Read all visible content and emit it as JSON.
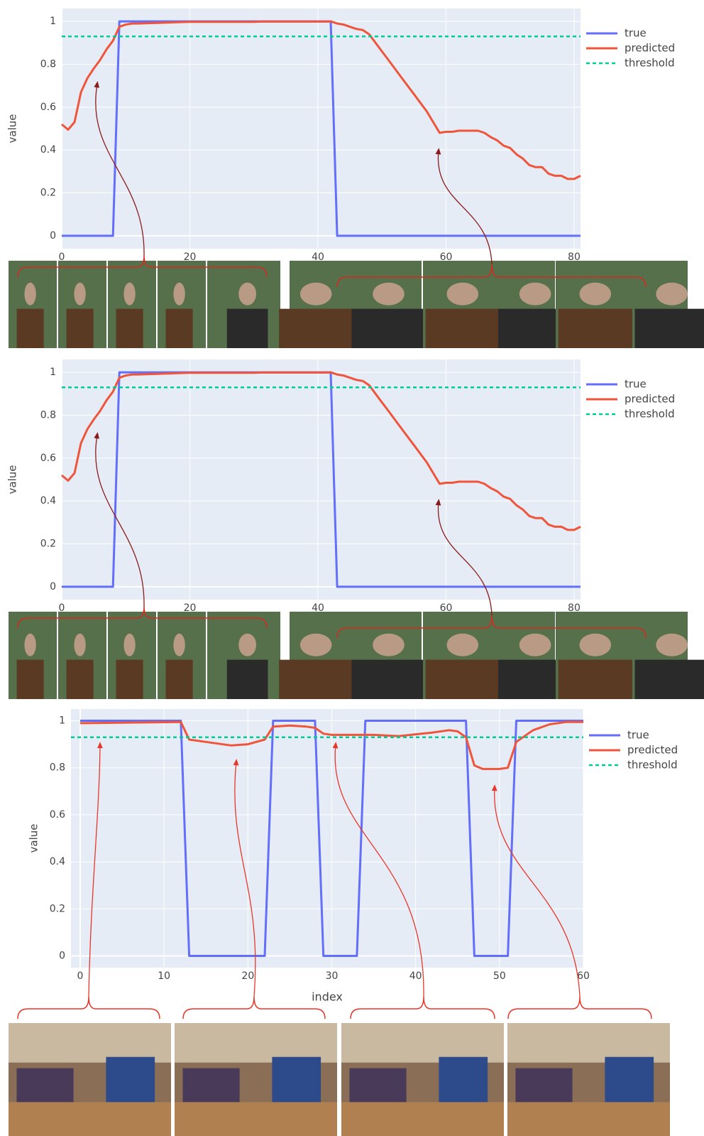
{
  "chart_data": [
    {
      "type": "line",
      "ylabel": "value",
      "xlim": [
        0,
        81
      ],
      "ylim": [
        -0.06,
        1.06
      ],
      "xticks": [
        0,
        20,
        40,
        60,
        80
      ],
      "yticks": [
        0,
        0.2,
        0.4,
        0.6,
        0.8,
        1
      ],
      "grid": true,
      "series": [
        {
          "name": "true",
          "color": "#636efa",
          "x": [
            0,
            8,
            9,
            42,
            43,
            81
          ],
          "values": [
            0,
            0,
            1,
            1,
            0,
            0
          ]
        },
        {
          "name": "predicted",
          "color": "#ef553b",
          "x": [
            0,
            1,
            2,
            3,
            4,
            5,
            6,
            7,
            8,
            9,
            10,
            11,
            12,
            13,
            14,
            15,
            16,
            17,
            18,
            19,
            20,
            21,
            22,
            23,
            24,
            25,
            26,
            27,
            28,
            29,
            30,
            31,
            32,
            33,
            34,
            35,
            36,
            37,
            38,
            39,
            40,
            41,
            42,
            43,
            44,
            45,
            46,
            47,
            48,
            49,
            50,
            51,
            52,
            53,
            54,
            55,
            56,
            57,
            58,
            59,
            60,
            61,
            62,
            63,
            64,
            65,
            66,
            67,
            68,
            69,
            70,
            71,
            72,
            73,
            74,
            75,
            76,
            77,
            78,
            79,
            80,
            81
          ],
          "values": [
            0.52,
            0.495,
            0.53,
            0.67,
            0.735,
            0.78,
            0.82,
            0.87,
            0.91,
            0.975,
            0.985,
            0.99,
            0.99,
            0.991,
            0.992,
            0.993,
            0.994,
            0.995,
            0.996,
            0.997,
            0.998,
            0.998,
            0.998,
            0.998,
            0.998,
            0.998,
            0.998,
            0.998,
            0.998,
            0.998,
            0.998,
            0.999,
            0.999,
            0.999,
            0.999,
            0.999,
            0.999,
            0.999,
            0.999,
            0.999,
            0.999,
            0.999,
            1.0,
            0.99,
            0.985,
            0.975,
            0.965,
            0.96,
            0.94,
            0.9,
            0.86,
            0.82,
            0.78,
            0.74,
            0.7,
            0.66,
            0.62,
            0.58,
            0.53,
            0.48,
            0.485,
            0.485,
            0.49,
            0.49,
            0.49,
            0.49,
            0.48,
            0.46,
            0.445,
            0.42,
            0.41,
            0.38,
            0.36,
            0.33,
            0.32,
            0.32,
            0.29,
            0.28,
            0.28,
            0.265,
            0.265,
            0.28
          ]
        },
        {
          "name": "threshold",
          "color": "#00cc96",
          "dash": true,
          "x": [
            0,
            81
          ],
          "values": [
            0.93,
            0.93
          ]
        }
      ]
    },
    {
      "type": "line",
      "ylabel": "value",
      "xlim": [
        0,
        81
      ],
      "ylim": [
        -0.06,
        1.06
      ],
      "xticks": [
        0,
        20,
        40,
        60,
        80
      ],
      "yticks": [
        0,
        0.2,
        0.4,
        0.6,
        0.8,
        1
      ],
      "grid": true,
      "series": [
        {
          "name": "true",
          "color": "#636efa",
          "x": [
            0,
            8,
            9,
            42,
            43,
            81
          ],
          "values": [
            0,
            0,
            1,
            1,
            0,
            0
          ]
        },
        {
          "name": "predicted",
          "color": "#ef553b",
          "x": [
            0,
            1,
            2,
            3,
            4,
            5,
            6,
            7,
            8,
            9,
            10,
            11,
            12,
            13,
            14,
            15,
            16,
            17,
            18,
            19,
            20,
            21,
            22,
            23,
            24,
            25,
            26,
            27,
            28,
            29,
            30,
            31,
            32,
            33,
            34,
            35,
            36,
            37,
            38,
            39,
            40,
            41,
            42,
            43,
            44,
            45,
            46,
            47,
            48,
            49,
            50,
            51,
            52,
            53,
            54,
            55,
            56,
            57,
            58,
            59,
            60,
            61,
            62,
            63,
            64,
            65,
            66,
            67,
            68,
            69,
            70,
            71,
            72,
            73,
            74,
            75,
            76,
            77,
            78,
            79,
            80,
            81
          ],
          "values": [
            0.52,
            0.495,
            0.53,
            0.67,
            0.735,
            0.78,
            0.82,
            0.87,
            0.91,
            0.975,
            0.985,
            0.99,
            0.99,
            0.991,
            0.992,
            0.993,
            0.994,
            0.995,
            0.996,
            0.997,
            0.998,
            0.998,
            0.998,
            0.998,
            0.998,
            0.998,
            0.998,
            0.998,
            0.998,
            0.998,
            0.998,
            0.999,
            0.999,
            0.999,
            0.999,
            0.999,
            0.999,
            0.999,
            0.999,
            0.999,
            0.999,
            0.999,
            1.0,
            0.99,
            0.985,
            0.975,
            0.965,
            0.96,
            0.94,
            0.9,
            0.86,
            0.82,
            0.78,
            0.74,
            0.7,
            0.66,
            0.62,
            0.58,
            0.53,
            0.48,
            0.485,
            0.485,
            0.49,
            0.49,
            0.49,
            0.49,
            0.48,
            0.46,
            0.445,
            0.42,
            0.41,
            0.38,
            0.36,
            0.33,
            0.32,
            0.32,
            0.29,
            0.28,
            0.28,
            0.265,
            0.265,
            0.28
          ]
        },
        {
          "name": "threshold",
          "color": "#00cc96",
          "dash": true,
          "x": [
            0,
            81
          ],
          "values": [
            0.93,
            0.93
          ]
        }
      ]
    },
    {
      "type": "line",
      "xlabel": "index",
      "ylabel": "value",
      "xlim": [
        -1.1,
        60
      ],
      "ylim": [
        -0.05,
        1.05
      ],
      "xticks": [
        0,
        10,
        20,
        30,
        40,
        50,
        60
      ],
      "yticks": [
        0,
        0.2,
        0.4,
        0.6,
        0.8,
        1
      ],
      "grid": true,
      "series": [
        {
          "name": "true",
          "color": "#636efa",
          "x": [
            0,
            12,
            13,
            22,
            23,
            28,
            29,
            33,
            34,
            46,
            47,
            51,
            52,
            60
          ],
          "values": [
            1,
            1,
            0,
            0,
            1,
            1,
            0,
            0,
            1,
            1,
            0,
            0,
            1,
            1
          ]
        },
        {
          "name": "predicted",
          "color": "#ef553b",
          "x": [
            0,
            12,
            13,
            15,
            18,
            20,
            22,
            23,
            25,
            27,
            28,
            29,
            30,
            35,
            38,
            42,
            44,
            45,
            46,
            47,
            48,
            50,
            51,
            52,
            54,
            56,
            58,
            60
          ],
          "values": [
            0.99,
            0.995,
            0.92,
            0.91,
            0.895,
            0.9,
            0.92,
            0.975,
            0.98,
            0.975,
            0.97,
            0.945,
            0.94,
            0.94,
            0.935,
            0.95,
            0.96,
            0.955,
            0.93,
            0.81,
            0.795,
            0.795,
            0.8,
            0.91,
            0.96,
            0.985,
            0.995,
            0.995
          ]
        },
        {
          "name": "threshold",
          "color": "#00cc96",
          "dash": true,
          "x": [
            -1.1,
            60
          ],
          "values": [
            0.93,
            0.93
          ]
        }
      ]
    }
  ]
}
